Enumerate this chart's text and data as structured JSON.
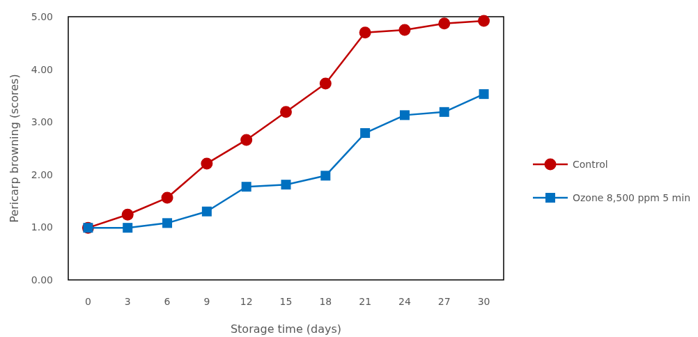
{
  "chart_data": {
    "type": "line",
    "xlabel": "Storage time (days)",
    "ylabel": "Pericarp browning (scores)",
    "categories": [
      "0",
      "3",
      "6",
      "9",
      "12",
      "15",
      "18",
      "21",
      "24",
      "27",
      "30"
    ],
    "series": [
      {
        "name": "Control",
        "color": "#c00000",
        "marker": "circle",
        "values": [
          0.99,
          1.24,
          1.56,
          2.21,
          2.66,
          3.19,
          3.73,
          4.7,
          4.75,
          4.87,
          4.92
        ]
      },
      {
        "name": "Ozone 8,500 ppm 5 min",
        "color": "#0070c0",
        "marker": "square",
        "values": [
          0.99,
          0.99,
          1.08,
          1.3,
          1.77,
          1.81,
          1.98,
          2.79,
          3.13,
          3.19,
          3.53
        ]
      }
    ],
    "ylim": [
      0,
      5
    ],
    "yticks": [
      {
        "value": 0,
        "label": "0.00"
      },
      {
        "value": 1,
        "label": "1.00"
      },
      {
        "value": 2,
        "label": "2.00"
      },
      {
        "value": 3,
        "label": "3.00"
      },
      {
        "value": 4,
        "label": "4.00"
      },
      {
        "value": 5,
        "label": "5.00"
      }
    ],
    "grid": false,
    "legend": "right",
    "line_style": "solid"
  }
}
